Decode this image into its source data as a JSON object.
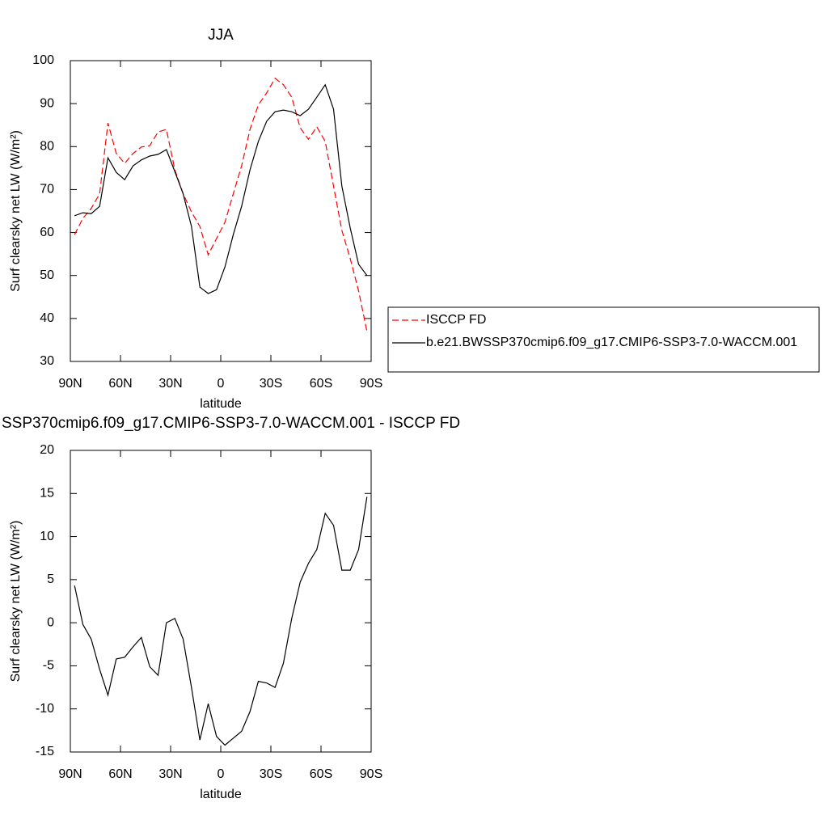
{
  "chart_data": [
    {
      "type": "line",
      "title": "JJA",
      "xlabel": "latitude",
      "ylabel": "Surf clearsky net LW (W/m²)",
      "x": [
        87.5,
        82.5,
        77.5,
        72.5,
        67.5,
        62.5,
        57.5,
        52.5,
        47.5,
        42.5,
        37.5,
        32.5,
        27.5,
        22.5,
        17.5,
        12.5,
        7.5,
        2.5,
        -2.5,
        -7.5,
        -12.5,
        -17.5,
        -22.5,
        -27.5,
        -32.5,
        -37.5,
        -42.5,
        -47.5,
        -52.5,
        -57.5,
        -62.5,
        -67.5,
        -72.5,
        -77.5,
        -82.5,
        -87.5
      ],
      "series": [
        {
          "name": "ISCCP FD",
          "color": "#ff0000",
          "dash": true,
          "values": [
            59.5,
            63.3,
            65.6,
            69.0,
            85.5,
            78.4,
            76.1,
            78.4,
            79.9,
            80.2,
            83.4,
            84.0,
            74.6,
            69.0,
            64.8,
            61.4,
            54.8,
            58.6,
            62.4,
            69.0,
            75.5,
            84.0,
            89.7,
            92.5,
            95.9,
            94.4,
            91.5,
            84.4,
            81.7,
            84.6,
            81.2,
            70.8,
            60.5,
            53.9,
            46.4,
            37.0
          ]
        },
        {
          "name": "b.e21.BWSSP370cmip6.f09_g17.CMIP6-SSP3-7.0-WACCM.001",
          "color": "#000000",
          "dash": false,
          "values": [
            63.9,
            64.6,
            64.4,
            66.1,
            77.4,
            74.0,
            72.3,
            75.5,
            76.9,
            77.8,
            78.2,
            79.3,
            74.2,
            69.0,
            61.4,
            47.3,
            45.8,
            46.7,
            52.0,
            59.5,
            66.1,
            74.6,
            81.2,
            85.9,
            88.1,
            88.5,
            88.1,
            87.2,
            88.7,
            91.5,
            94.4,
            88.7,
            70.8,
            61.0,
            52.6,
            50.0
          ]
        }
      ],
      "xlim": [
        90,
        -90
      ],
      "xticks": [
        {
          "value": 90,
          "label": "90N"
        },
        {
          "value": 60,
          "label": "60N"
        },
        {
          "value": 30,
          "label": "30N"
        },
        0,
        {
          "value": -30,
          "label": "30S"
        },
        {
          "value": -60,
          "label": "60S"
        },
        {
          "value": -90,
          "label": "90S"
        }
      ],
      "ylim": [
        30,
        100
      ],
      "yticks": [
        30,
        40,
        50,
        60,
        70,
        80,
        90,
        100
      ],
      "legend": "right"
    },
    {
      "type": "line",
      "title": "SSP370cmip6.f09_g17.CMIP6-SSP3-7.0-WACCM.001 - ISCCP FD",
      "xlabel": "latitude",
      "ylabel": "Surf clearsky net LW (W/m²)",
      "x": [
        87.5,
        82.5,
        77.5,
        72.5,
        67.5,
        62.5,
        57.5,
        52.5,
        47.5,
        42.5,
        37.5,
        32.5,
        27.5,
        22.5,
        17.5,
        12.5,
        7.5,
        2.5,
        -2.5,
        -7.5,
        -12.5,
        -17.5,
        -22.5,
        -27.5,
        -32.5,
        -37.5,
        -42.5,
        -47.5,
        -52.5,
        -57.5,
        -62.5,
        -67.5,
        -72.5,
        -77.5,
        -82.5,
        -87.5
      ],
      "series": [
        {
          "color": "#000000",
          "dash": false,
          "values": [
            4.3,
            -0.2,
            -1.9,
            -5.4,
            -8.4,
            -4.2,
            -4.0,
            -2.8,
            -1.7,
            -5.1,
            -6.1,
            0.0,
            0.5,
            -1.9,
            -7.5,
            -13.6,
            -9.4,
            -13.2,
            -14.2,
            -13.4,
            -12.6,
            -10.3,
            -6.8,
            -7.0,
            -7.5,
            -4.7,
            0.5,
            4.7,
            6.9,
            8.5,
            12.7,
            11.3,
            6.1,
            6.1,
            8.5,
            14.6
          ]
        }
      ],
      "xlim": [
        90,
        -90
      ],
      "xticks": [
        {
          "value": 90,
          "label": "90N"
        },
        {
          "value": 60,
          "label": "60N"
        },
        {
          "value": 30,
          "label": "30N"
        },
        0,
        {
          "value": -30,
          "label": "30S"
        },
        {
          "value": -60,
          "label": "60S"
        },
        {
          "value": -90,
          "label": "90S"
        }
      ],
      "ylim": [
        -15,
        20
      ],
      "yticks": [
        -15,
        -10,
        -5,
        0,
        5,
        10,
        15,
        20
      ]
    }
  ]
}
